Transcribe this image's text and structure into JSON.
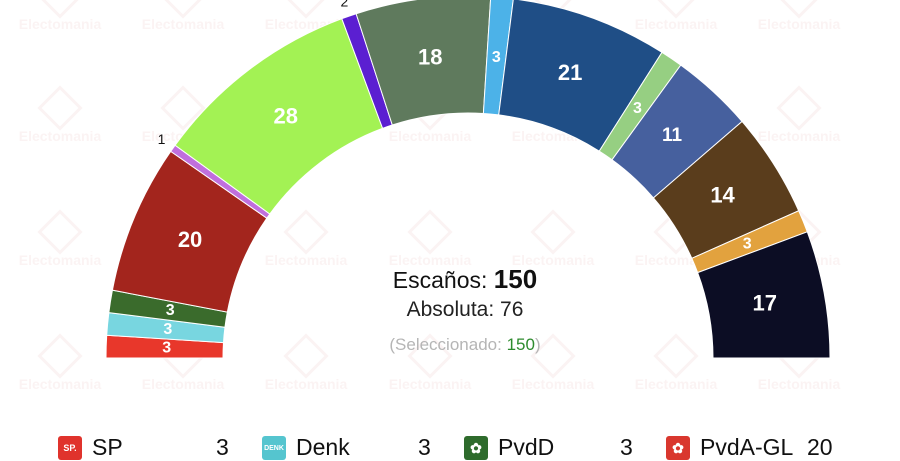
{
  "watermark_text": "Electomania",
  "summary": {
    "total_label": "Escaños:",
    "total_value": "150",
    "majority_label": "Absoluta:",
    "majority_value": "76",
    "selected_prefix": "(Seleccionado: ",
    "selected_value": "150",
    "selected_suffix": ")"
  },
  "chart_data": {
    "type": "pie",
    "variant": "hemicycle",
    "total": 150,
    "segments": [
      {
        "label": "SP",
        "value": 3,
        "color": "#e8372b"
      },
      {
        "label": "Denk",
        "value": 3,
        "color": "#78d6e0"
      },
      {
        "label": "PvdD",
        "value": 3,
        "color": "#3a6b2c"
      },
      {
        "label": "PvdA-GL",
        "value": 20,
        "color": "#a3251d"
      },
      {
        "label": "",
        "value": 1,
        "color": "#c06fdd"
      },
      {
        "label": "",
        "value": 28,
        "color": "#a3f254"
      },
      {
        "label": "",
        "value": 2,
        "color": "#5b1fd1"
      },
      {
        "label": "",
        "value": 18,
        "color": "#5f7a5d"
      },
      {
        "label": "",
        "value": 3,
        "color": "#4cb2e8"
      },
      {
        "label": "",
        "value": 21,
        "color": "#1f4e86"
      },
      {
        "label": "",
        "value": 3,
        "color": "#96cf82"
      },
      {
        "label": "",
        "value": 11,
        "color": "#46609e"
      },
      {
        "label": "",
        "value": 14,
        "color": "#5a3d1c"
      },
      {
        "label": "",
        "value": 3,
        "color": "#e2a23e"
      },
      {
        "label": "",
        "value": 17,
        "color": "#0c0d24"
      }
    ]
  },
  "legend": [
    {
      "name": "SP",
      "seats": "3",
      "logo_text": "SP.",
      "logo_color": "#e0332c"
    },
    {
      "name": "Denk",
      "seats": "3",
      "logo_text": "DENK",
      "logo_color": "#55c5cf"
    },
    {
      "name": "PvdD",
      "seats": "3",
      "logo_text": "✿",
      "logo_color": "#2e6b2c"
    },
    {
      "name": "PvdA-GL",
      "seats": "20",
      "logo_text": "✿",
      "logo_color": "#d9372e"
    }
  ]
}
